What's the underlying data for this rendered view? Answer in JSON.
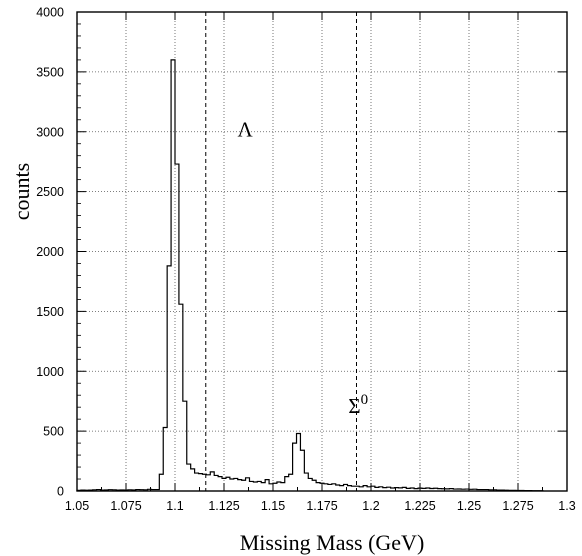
{
  "chart_data": {
    "type": "histogram",
    "xlabel": "Missing Mass (GeV)",
    "ylabel": "counts",
    "xlim": [
      1.05,
      1.3
    ],
    "ylim": [
      0,
      4000
    ],
    "grid": true,
    "x_ticks": [
      1.05,
      1.075,
      1.1,
      1.125,
      1.15,
      1.175,
      1.2,
      1.225,
      1.25,
      1.275,
      1.3
    ],
    "x_tick_labels": [
      "1.05",
      "1.075",
      "1.1",
      "1.125",
      "1.15",
      "1.175",
      "1.2",
      "1.225",
      "1.25",
      "1.275",
      "1.3"
    ],
    "y_ticks": [
      0,
      500,
      1000,
      1500,
      2000,
      2500,
      3000,
      3500,
      4000
    ],
    "y_tick_labels": [
      "0",
      "500",
      "1000",
      "1500",
      "2000",
      "2500",
      "3000",
      "3500",
      "4000"
    ],
    "bin_width": 0.002,
    "bin_start": 1.05,
    "counts": [
      5,
      8,
      6,
      7,
      10,
      12,
      8,
      9,
      11,
      10,
      7,
      9,
      8,
      10,
      9,
      12,
      11,
      10,
      14,
      12,
      12,
      140,
      530,
      1880,
      3600,
      2730,
      1560,
      750,
      225,
      185,
      150,
      145,
      140,
      135,
      160,
      130,
      120,
      105,
      115,
      100,
      105,
      95,
      90,
      110,
      80,
      75,
      80,
      70,
      95,
      60,
      65,
      75,
      70,
      120,
      140,
      400,
      480,
      340,
      150,
      105,
      90,
      70,
      65,
      60,
      55,
      60,
      50,
      45,
      55,
      45,
      40,
      40,
      35,
      45,
      35,
      40,
      30,
      35,
      28,
      32,
      25,
      28,
      26,
      30,
      22,
      25,
      20,
      24,
      22,
      25,
      21,
      23,
      20,
      19,
      18,
      20,
      16,
      17,
      15,
      16,
      14,
      15,
      12,
      12,
      12,
      10,
      10,
      8,
      8,
      6,
      5,
      5,
      4,
      4,
      3,
      3,
      2,
      2,
      2
    ],
    "reference_lines": [
      {
        "x": 1.1157,
        "style": "dashed"
      },
      {
        "x": 1.1926,
        "style": "dashed"
      }
    ],
    "annotations": [
      {
        "text": "Λ",
        "x": 1.1358,
        "y": 2960
      },
      {
        "text": "Σ",
        "superscript": "0",
        "x": 1.1935,
        "y": 650
      }
    ]
  }
}
